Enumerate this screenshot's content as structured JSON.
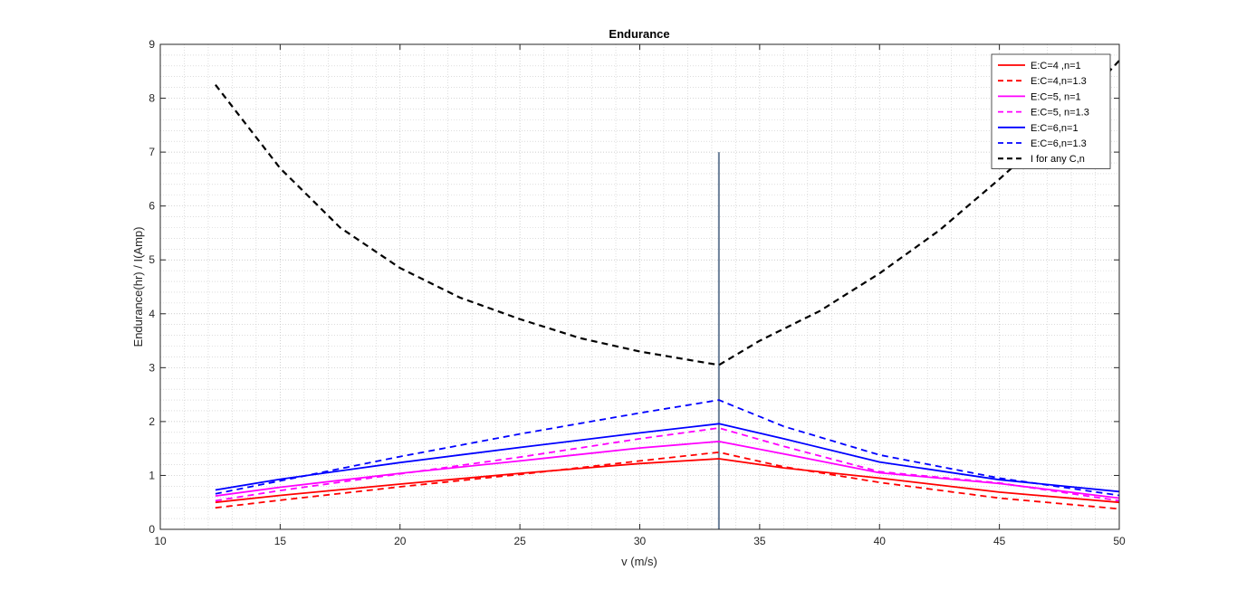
{
  "chart_data": {
    "type": "line",
    "title": "Endurance",
    "xlabel": "v (m/s)",
    "ylabel": "Endurance(hr) / I(Amp)",
    "xlim": [
      10,
      50
    ],
    "ylim": [
      0,
      9
    ],
    "xticks": [
      10,
      15,
      20,
      25,
      30,
      35,
      40,
      45,
      50
    ],
    "yticks": [
      0,
      1,
      2,
      3,
      4,
      5,
      6,
      7,
      8,
      9
    ],
    "grid": true,
    "minor_grid": true,
    "legend_position": "top-right",
    "vertical_line": {
      "x": 33.3,
      "y_range": [
        0,
        7
      ],
      "color": "#6a7f99"
    },
    "series": [
      {
        "name": "E:C=4 ,n=1",
        "color": "#ff0000",
        "dash": "solid",
        "x": [
          12.3,
          15,
          20,
          25,
          30,
          33.3,
          36,
          40,
          45,
          50
        ],
        "y": [
          0.5,
          0.63,
          0.84,
          1.04,
          1.22,
          1.31,
          1.14,
          0.95,
          0.69,
          0.5
        ]
      },
      {
        "name": "E:C=4,n=1.3",
        "color": "#ff0000",
        "dash": "dashed",
        "x": [
          12.3,
          15,
          20,
          25,
          30,
          33.3,
          36,
          40,
          45,
          50
        ],
        "y": [
          0.4,
          0.54,
          0.79,
          1.02,
          1.27,
          1.43,
          1.16,
          0.87,
          0.58,
          0.38
        ]
      },
      {
        "name": "E:C=5, n=1",
        "color": "#ff00ff",
        "dash": "solid",
        "x": [
          12.3,
          15,
          20,
          25,
          30,
          33.3,
          36,
          40,
          45,
          50
        ],
        "y": [
          0.62,
          0.78,
          1.04,
          1.27,
          1.51,
          1.63,
          1.4,
          1.05,
          0.85,
          0.58
        ]
      },
      {
        "name": "E:C=5, n=1.3",
        "color": "#ff00ff",
        "dash": "dashed",
        "x": [
          12.3,
          15,
          20,
          25,
          30,
          33.3,
          36,
          40,
          45,
          50
        ],
        "y": [
          0.53,
          0.72,
          1.03,
          1.34,
          1.68,
          1.88,
          1.54,
          1.07,
          0.86,
          0.53
        ]
      },
      {
        "name": "E:C=6,n=1",
        "color": "#0000ff",
        "dash": "solid",
        "x": [
          12.3,
          15,
          20,
          25,
          30,
          33.3,
          36,
          40,
          45,
          50
        ],
        "y": [
          0.73,
          0.93,
          1.24,
          1.52,
          1.79,
          1.96,
          1.68,
          1.25,
          0.92,
          0.7
        ]
      },
      {
        "name": "E:C=6,n=1.3",
        "color": "#0000ff",
        "dash": "dashed",
        "x": [
          12.3,
          15,
          20,
          25,
          30,
          33.3,
          36,
          40,
          45,
          50
        ],
        "y": [
          0.66,
          0.9,
          1.35,
          1.77,
          2.16,
          2.4,
          1.91,
          1.38,
          0.95,
          0.63
        ]
      },
      {
        "name": "I for any C,n",
        "color": "#000000",
        "dash": "dashed",
        "x": [
          12.3,
          15,
          17.5,
          20,
          22.5,
          25,
          27.5,
          30,
          33.3,
          35,
          37.5,
          40,
          42.5,
          45,
          47.5,
          50
        ],
        "y": [
          8.25,
          6.7,
          5.6,
          4.85,
          4.3,
          3.9,
          3.55,
          3.3,
          3.05,
          3.5,
          4.05,
          4.75,
          5.55,
          6.5,
          7.5,
          8.7
        ]
      }
    ]
  }
}
